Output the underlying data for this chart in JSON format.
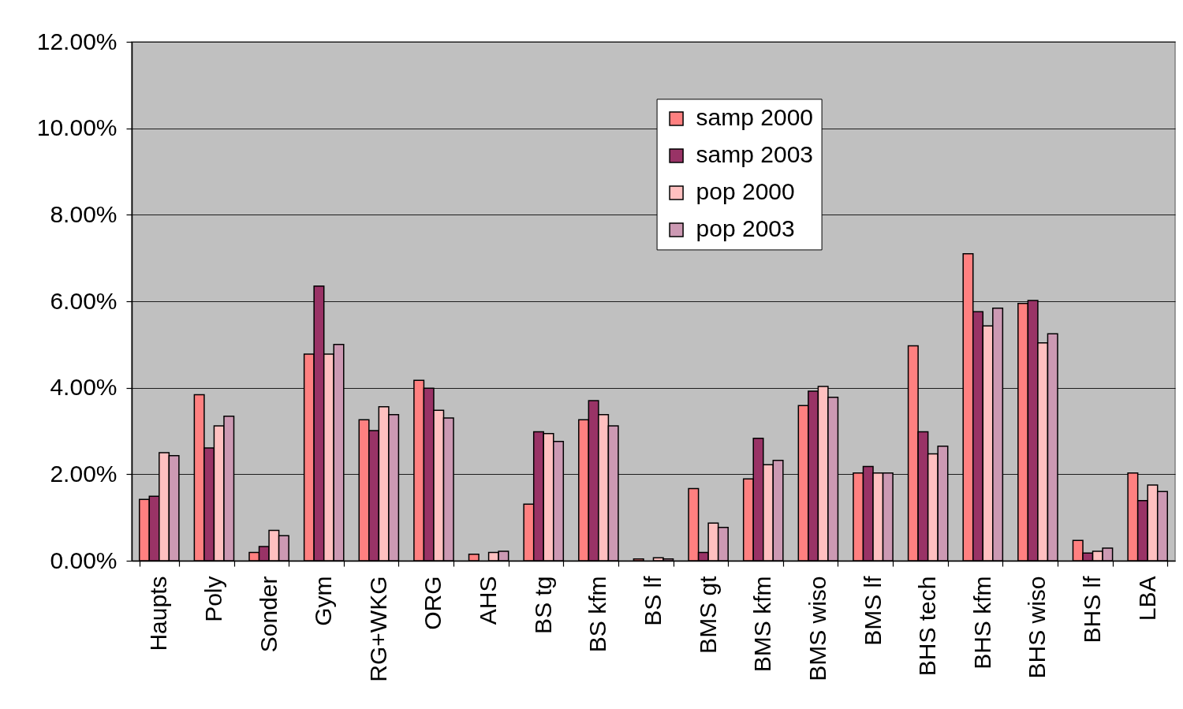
{
  "chart_data": {
    "type": "bar",
    "categories": [
      "Haupts",
      "Poly",
      "Sonder",
      "Gym",
      "RG+WKG",
      "ORG",
      "AHS",
      "BS tg",
      "BS kfm",
      "BS lf",
      "BMS gt",
      "BMS kfm",
      "BMS wiso",
      "BMS lf",
      "BHS tech",
      "BHS kfm",
      "BHS wiso",
      "BHS lf",
      "LBA"
    ],
    "series": [
      {
        "name": "samp 2000",
        "color": "#ff8080",
        "values": [
          1.42,
          3.84,
          0.19,
          4.78,
          3.26,
          4.17,
          0.15,
          1.31,
          3.26,
          0.04,
          1.67,
          1.89,
          3.59,
          2.03,
          4.97,
          7.1,
          5.95,
          0.47,
          2.03
        ]
      },
      {
        "name": "samp 2003",
        "color": "#993366",
        "values": [
          1.49,
          2.61,
          0.33,
          6.35,
          3.01,
          3.99,
          null,
          2.98,
          3.7,
          null,
          0.19,
          2.83,
          3.92,
          2.18,
          2.98,
          5.76,
          6.02,
          0.18,
          1.39
        ]
      },
      {
        "name": "pop 2000",
        "color": "#ffc0c0",
        "values": [
          2.5,
          3.12,
          0.7,
          4.78,
          3.56,
          3.48,
          0.19,
          2.94,
          3.38,
          0.07,
          0.87,
          2.22,
          4.03,
          2.03,
          2.47,
          5.43,
          5.04,
          0.22,
          1.75
        ]
      },
      {
        "name": "pop 2003",
        "color": "#cc99b3",
        "values": [
          2.43,
          3.34,
          0.58,
          5.0,
          3.38,
          3.3,
          0.22,
          2.76,
          3.12,
          0.04,
          0.77,
          2.32,
          3.78,
          2.03,
          2.65,
          5.84,
          5.25,
          0.29,
          1.6
        ]
      }
    ],
    "ylim": [
      0,
      12
    ],
    "yticks": [
      {
        "value": 0,
        "label": "0.00%"
      },
      {
        "value": 2,
        "label": "2.00%"
      },
      {
        "value": 4,
        "label": "4.00%"
      },
      {
        "value": 6,
        "label": "6.00%"
      },
      {
        "value": 8,
        "label": "8.00%"
      },
      {
        "value": 10,
        "label": "10.00%"
      },
      {
        "value": 12,
        "label": "12.00%"
      }
    ],
    "grid": "y",
    "legend": "top"
  }
}
